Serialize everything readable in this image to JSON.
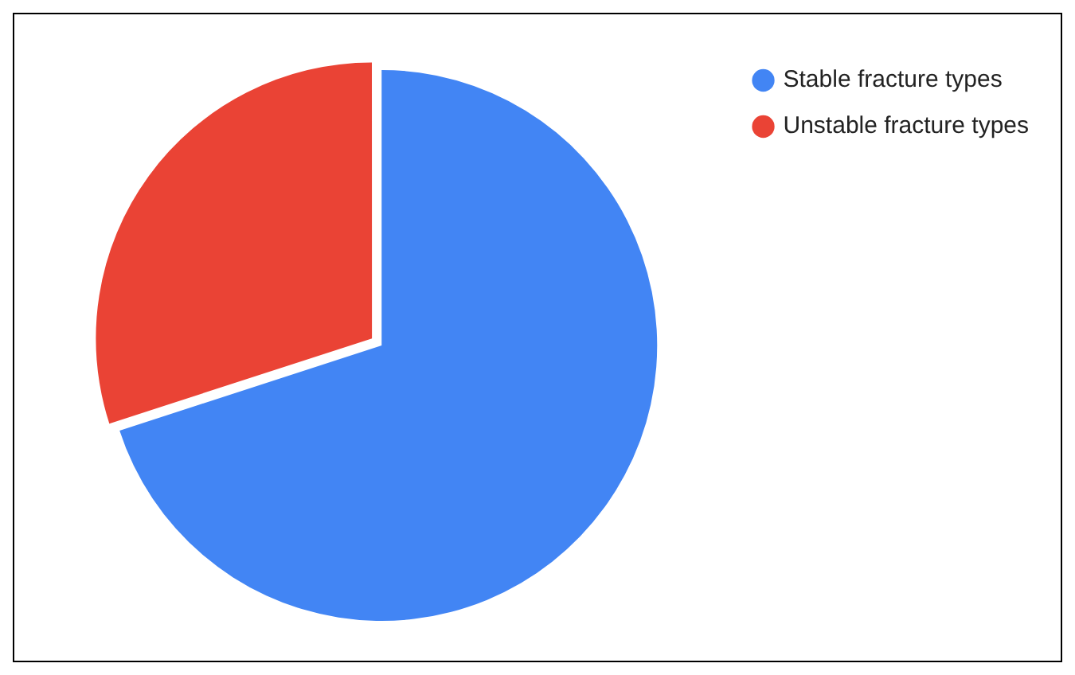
{
  "chart_data": {
    "type": "pie",
    "categories": [
      "Stable fracture types",
      "Unstable fracture types"
    ],
    "values": [
      70,
      30
    ],
    "colors": [
      "#4285f4",
      "#ea4335"
    ],
    "legend": "top right"
  }
}
